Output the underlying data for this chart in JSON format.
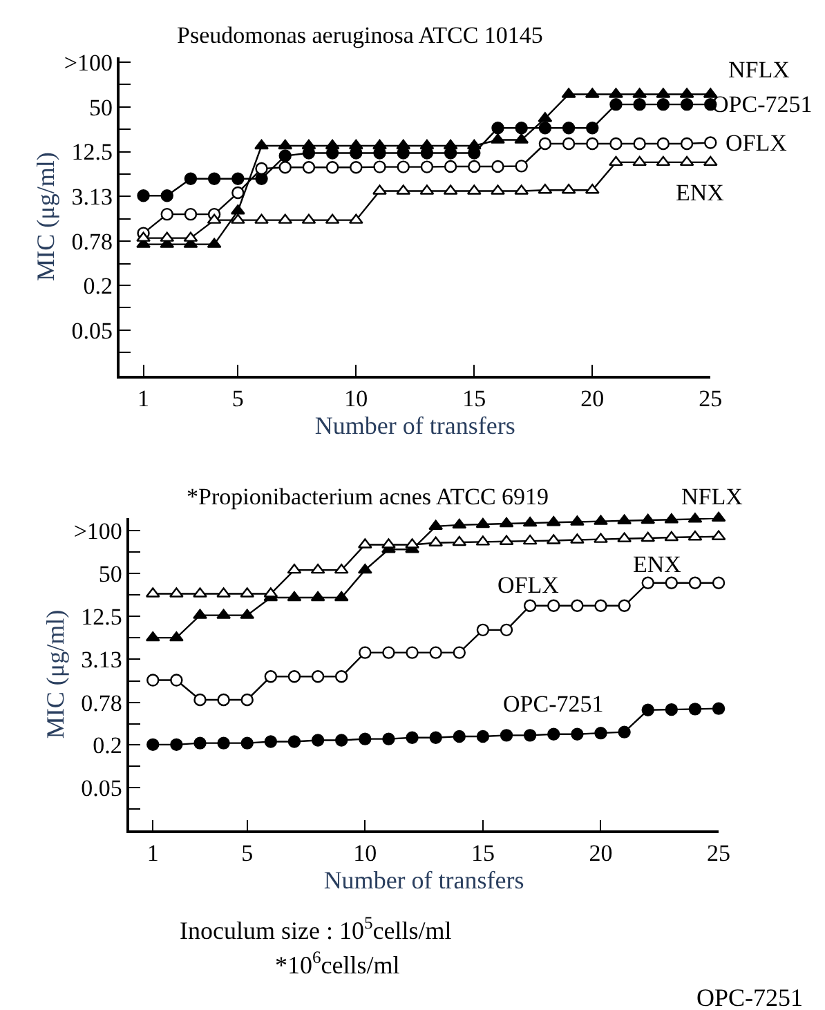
{
  "chart_data": [
    {
      "type": "line",
      "title": "Pseudomonas aeruginosa ATCC 10145",
      "xlabel": "Number of transfers",
      "ylabel": "MIC (μg/ml)",
      "log": "y",
      "grid": false,
      "line_style": "solid",
      "x": [
        1,
        2,
        3,
        4,
        5,
        6,
        7,
        8,
        9,
        10,
        11,
        12,
        13,
        14,
        15,
        16,
        17,
        18,
        19,
        20,
        21,
        22,
        23,
        24,
        25
      ],
      "xlim": [
        0,
        25
      ],
      "xticks": [
        1,
        5,
        10,
        15,
        20,
        25
      ],
      "ylim": [
        0.0122,
        230
      ],
      "yticks": [
        {
          "value": 0.025,
          "label": null
        },
        0.05,
        {
          "value": 0.1,
          "label": null
        },
        0.2,
        {
          "value": 0.39,
          "label": null
        },
        0.78,
        {
          "value": 1.56,
          "label": null
        },
        3.13,
        {
          "value": 6.25,
          "label": null
        },
        12.5,
        {
          "value": 25,
          "label": null
        },
        50,
        {
          "value": 100,
          "label": null
        },
        {
          "value": 200,
          "label": ">100"
        }
      ],
      "series": [
        {
          "name": "NFLX",
          "color": "#000000",
          "marker": "triangle",
          "values": [
            0.71,
            0.71,
            0.71,
            0.71,
            2.0,
            15,
            15,
            15,
            15,
            15,
            15,
            15,
            15,
            15,
            15,
            18,
            18,
            35,
            74,
            74,
            74,
            74,
            74,
            74,
            74
          ]
        },
        {
          "name": "OPC-7251",
          "color": "#000000",
          "marker": "circle",
          "values": [
            3.2,
            3.2,
            5.4,
            5.4,
            5.4,
            5.4,
            11,
            12,
            12,
            12,
            12,
            12,
            12,
            12,
            12,
            26,
            26,
            26,
            26,
            26,
            54,
            54,
            54,
            54,
            54
          ]
        },
        {
          "name": "OFLX",
          "color": "#000000",
          "marker": "circle-open",
          "values": [
            1.0,
            1.8,
            1.8,
            1.8,
            3.5,
            7.4,
            7.7,
            7.7,
            7.7,
            7.7,
            7.8,
            7.8,
            7.8,
            7.9,
            7.9,
            7.9,
            8.0,
            16,
            16,
            16,
            16,
            16,
            16,
            16,
            16.5
          ]
        },
        {
          "name": "ENX",
          "color": "#000000",
          "marker": "triangle-open",
          "values": [
            0.86,
            0.86,
            0.86,
            1.5,
            1.5,
            1.5,
            1.5,
            1.5,
            1.5,
            1.5,
            3.7,
            3.7,
            3.7,
            3.7,
            3.7,
            3.7,
            3.7,
            3.8,
            3.8,
            3.8,
            9.0,
            9.0,
            9.0,
            9.0,
            9.0
          ]
        }
      ]
    },
    {
      "type": "line",
      "title": "*Propionibacterium acnes ATCC 6919",
      "xlabel": "Number of transfers",
      "ylabel": "MIC (μg/ml)",
      "log": "y",
      "grid": false,
      "line_style": "solid",
      "x": [
        1,
        2,
        3,
        4,
        5,
        6,
        7,
        8,
        9,
        10,
        11,
        12,
        13,
        14,
        15,
        16,
        17,
        18,
        19,
        20,
        21,
        22,
        23,
        24,
        25
      ],
      "xlim": [
        0,
        25
      ],
      "xticks": [
        1,
        5,
        10,
        15,
        20,
        25
      ],
      "ylim": [
        0.0125,
        300
      ],
      "yticks": [
        {
          "value": 0.025,
          "label": null
        },
        0.05,
        {
          "value": 0.1,
          "label": null
        },
        0.2,
        {
          "value": 0.39,
          "label": null
        },
        0.78,
        {
          "value": 1.56,
          "label": null
        },
        3.13,
        {
          "value": 6.25,
          "label": null
        },
        12.5,
        {
          "value": 25,
          "label": null
        },
        50,
        {
          "value": 100,
          "label": null
        },
        {
          "value": 200,
          "label": ">100"
        }
      ],
      "series": [
        {
          "name": "NFLX",
          "color": "#000000",
          "marker": "triangle",
          "values": [
            6.3,
            6.3,
            13,
            13,
            13,
            23,
            23,
            23,
            23,
            56,
            109,
            109,
            230,
            240,
            245,
            250,
            255,
            260,
            265,
            270,
            275,
            280,
            285,
            290,
            300
          ]
        },
        {
          "name": "ENX",
          "color": "#000000",
          "marker": "triangle-open",
          "values": [
            26,
            26,
            26,
            26,
            26,
            26,
            56,
            56,
            56,
            127,
            127,
            127,
            135,
            137,
            139,
            141,
            143,
            145,
            148,
            151,
            154,
            157,
            160,
            163,
            165
          ]
        },
        {
          "name": "OFLX",
          "color": "#000000",
          "marker": "circle-open",
          "values": [
            1.6,
            1.6,
            0.85,
            0.85,
            0.85,
            1.8,
            1.8,
            1.8,
            1.8,
            3.9,
            3.9,
            3.9,
            3.9,
            3.9,
            8.1,
            8.1,
            17.7,
            17.7,
            17.7,
            17.7,
            17.7,
            37,
            37,
            37,
            37
          ]
        },
        {
          "name": "OPC-7251",
          "color": "#000000",
          "marker": "circle",
          "values": [
            0.2,
            0.2,
            0.21,
            0.21,
            0.21,
            0.22,
            0.22,
            0.23,
            0.23,
            0.24,
            0.24,
            0.25,
            0.25,
            0.26,
            0.26,
            0.27,
            0.27,
            0.28,
            0.28,
            0.29,
            0.3,
            0.61,
            0.62,
            0.63,
            0.64
          ]
        }
      ],
      "annotations": [
        "Inoculum size : 10$^{5}$cells/ml",
        "*10$^{6}$cells/ml",
        "OPC-7251"
      ]
    }
  ]
}
